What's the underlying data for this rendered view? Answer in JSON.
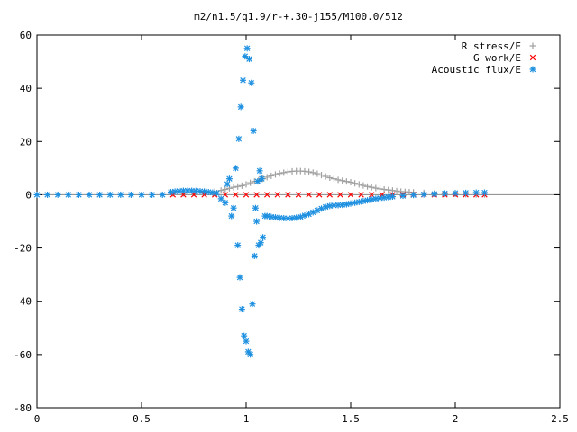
{
  "chart_data": {
    "type": "scatter",
    "title": "m2/n1.5/q1.9/r-+.30-j155/M100.0/512",
    "xlabel": "",
    "ylabel": "",
    "xlim": [
      0,
      2.5
    ],
    "ylim": [
      -80,
      60
    ],
    "x_ticks": [
      0,
      0.5,
      1,
      1.5,
      2,
      2.5
    ],
    "x_tick_labels": [
      "0",
      "0.5",
      "1",
      "1.5",
      "2",
      "2.5"
    ],
    "y_ticks": [
      -80,
      -60,
      -40,
      -20,
      0,
      20,
      40,
      60
    ],
    "y_tick_labels": [
      "-80",
      "-60",
      "-40",
      "-20",
      "0",
      "20",
      "40",
      "60"
    ],
    "grid": false,
    "legend_position": "top-right",
    "series": [
      {
        "name": "R stress/E",
        "marker": "plus",
        "color": "#a0a0a0",
        "x": [
          0.65,
          0.7,
          0.75,
          0.8,
          0.85,
          0.88,
          0.9,
          0.92,
          0.94,
          0.96,
          0.98,
          1.0,
          1.02,
          1.04,
          1.06,
          1.08,
          1.1,
          1.12,
          1.14,
          1.16,
          1.18,
          1.2,
          1.22,
          1.24,
          1.26,
          1.28,
          1.3,
          1.32,
          1.34,
          1.36,
          1.38,
          1.4,
          1.42,
          1.44,
          1.46,
          1.48,
          1.5,
          1.52,
          1.54,
          1.56,
          1.58,
          1.6,
          1.62,
          1.64,
          1.66,
          1.68,
          1.7,
          1.72,
          1.74,
          1.76,
          1.78,
          1.8,
          1.85,
          1.9,
          1.95,
          2.0,
          2.05,
          2.1,
          2.14
        ],
        "y": [
          0.5,
          0.5,
          0.6,
          0.8,
          1.2,
          1.6,
          2.0,
          2.4,
          2.8,
          3.1,
          3.4,
          3.9,
          4.5,
          5.0,
          5.5,
          6.0,
          6.6,
          7.1,
          7.6,
          8.0,
          8.3,
          8.6,
          8.8,
          8.9,
          8.9,
          8.8,
          8.6,
          8.3,
          7.9,
          7.4,
          6.9,
          6.4,
          6.0,
          5.6,
          5.3,
          5.0,
          4.7,
          4.3,
          3.9,
          3.5,
          3.1,
          2.8,
          2.5,
          2.2,
          2.0,
          1.8,
          1.6,
          1.4,
          1.2,
          1.1,
          1.0,
          0.9,
          0.7,
          0.5,
          0.4,
          0.3,
          0.2,
          0.1,
          0.1
        ]
      },
      {
        "name": "G work/E",
        "marker": "cross",
        "color": "#ff0000",
        "x": [
          0.65,
          0.7,
          0.75,
          0.8,
          0.85,
          0.9,
          0.95,
          1.0,
          1.05,
          1.1,
          1.15,
          1.2,
          1.25,
          1.3,
          1.35,
          1.4,
          1.45,
          1.5,
          1.55,
          1.6,
          1.65,
          1.7,
          1.75,
          1.8,
          1.85,
          1.9,
          1.95,
          2.0,
          2.05,
          2.1,
          2.14
        ],
        "y": [
          0,
          0,
          0,
          0,
          0,
          0,
          0,
          0,
          0,
          0,
          0,
          0,
          0,
          0,
          0,
          0,
          0,
          0,
          0,
          0,
          0,
          0,
          0,
          0,
          0,
          0,
          0,
          0,
          0,
          0,
          0
        ]
      },
      {
        "name": "Acoustic flux/E",
        "marker": "star",
        "color": "#1e90e0",
        "x": [
          0,
          0.05,
          0.1,
          0.15,
          0.2,
          0.25,
          0.3,
          0.35,
          0.4,
          0.45,
          0.5,
          0.55,
          0.6,
          0.64,
          0.66,
          0.68,
          0.7,
          0.72,
          0.74,
          0.76,
          0.78,
          0.8,
          0.82,
          0.84,
          0.86,
          0.88,
          0.9,
          0.91,
          0.92,
          0.93,
          0.94,
          0.95,
          0.96,
          0.965,
          0.97,
          0.975,
          0.98,
          0.985,
          0.99,
          0.995,
          1.0,
          1.005,
          1.01,
          1.015,
          1.02,
          1.025,
          1.03,
          1.035,
          1.04,
          1.045,
          1.05,
          1.055,
          1.06,
          1.065,
          1.07,
          1.075,
          1.08,
          1.09,
          1.1,
          1.12,
          1.14,
          1.16,
          1.18,
          1.2,
          1.22,
          1.24,
          1.26,
          1.28,
          1.3,
          1.32,
          1.34,
          1.36,
          1.38,
          1.4,
          1.42,
          1.44,
          1.46,
          1.48,
          1.5,
          1.52,
          1.54,
          1.56,
          1.58,
          1.6,
          1.62,
          1.64,
          1.66,
          1.68,
          1.7,
          1.75,
          1.8,
          1.85,
          1.9,
          1.95,
          2.0,
          2.05,
          2.1,
          2.14
        ],
        "y": [
          0,
          0,
          0,
          0,
          0,
          0,
          0,
          0,
          0,
          0,
          0,
          0,
          0,
          1.0,
          1.2,
          1.4,
          1.5,
          1.5,
          1.5,
          1.4,
          1.3,
          1.2,
          1.0,
          0.8,
          0.6,
          -1.5,
          -3,
          4,
          6,
          -8,
          -5,
          10,
          -19,
          21,
          -31,
          33,
          -43,
          43,
          -53,
          52,
          -55,
          55,
          -59,
          51,
          -60,
          42,
          -41,
          24,
          -23,
          -5,
          -10,
          5,
          -19,
          9,
          -18,
          6,
          -16,
          -8,
          -8,
          -8.3,
          -8.5,
          -8.7,
          -8.8,
          -8.9,
          -8.8,
          -8.6,
          -8.3,
          -7.8,
          -7.3,
          -6.6,
          -5.9,
          -5.2,
          -4.6,
          -4.2,
          -4.0,
          -3.9,
          -3.8,
          -3.6,
          -3.3,
          -3.0,
          -2.7,
          -2.4,
          -2.1,
          -1.8,
          -1.5,
          -1.3,
          -1.1,
          -0.9,
          -0.7,
          -0.4,
          -0.1,
          0.1,
          0.3,
          0.5,
          0.6,
          0.7,
          0.8,
          0.8
        ]
      }
    ]
  }
}
